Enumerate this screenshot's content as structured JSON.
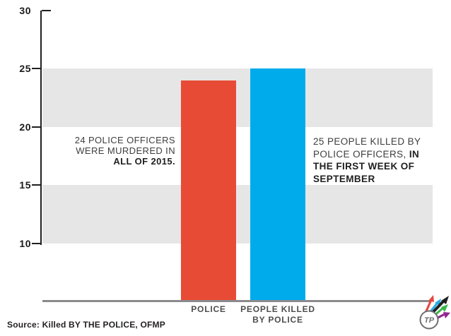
{
  "chart_data": {
    "type": "bar",
    "title": "",
    "xlabel": "",
    "ylabel": "",
    "categories": [
      "POLICE",
      "PEOPLE KILLED BY POLICE"
    ],
    "values": [
      24,
      25
    ],
    "bar_colors": [
      "#E84B35",
      "#00ABEC"
    ],
    "bar_label_lines": [
      [
        "POLICE"
      ],
      [
        "PEOPLE KILLED",
        "BY POLICE"
      ]
    ],
    "ylim": [
      5,
      30
    ],
    "yticks": [
      10,
      15,
      20,
      25,
      30
    ],
    "bands": [
      [
        20,
        25
      ],
      [
        10,
        15
      ]
    ],
    "grid": "shaded-bands",
    "legend": "none",
    "annotations": [
      {
        "line1": "24 POLICE OFFICERS",
        "line2": "WERE MURDERED IN",
        "line3": "ALL OF 2015."
      },
      {
        "line1": "25 PEOPLE KILLED BY",
        "line2_regular": "POLICE OFFICERS, ",
        "line2_bold": "IN",
        "line3": "THE FIRST WEEK OF",
        "line4": "SEPTEMBER"
      }
    ]
  },
  "source": {
    "text": "Source: Killed BY THE POLICE, OFMP"
  },
  "logo": {
    "monogram": "TP",
    "arrow_colors": [
      "#E8453C",
      "#29ABE2",
      "#231F20",
      "#39B54A",
      "#93278F"
    ],
    "circle_color": "#6D6E71"
  },
  "colors": {
    "bar_red": "#E84B35",
    "bar_blue": "#00ABEC",
    "band_gray": "#E6E6E7",
    "baseline_gray": "#8A8A8D",
    "axis_black": "#231F20"
  }
}
